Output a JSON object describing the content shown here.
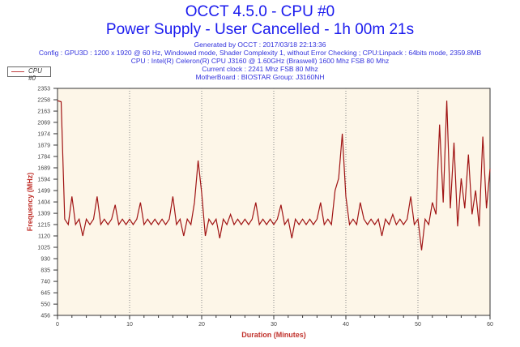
{
  "chart_data": {
    "type": "line",
    "title": "OCCT 4.5.0 - CPU #0",
    "subtitle": "Power Supply - User Cancelled - 1h 00m 21s",
    "info": [
      "Generated by OCCT : 2017/03/18 22:13:36",
      "Config : GPU3D : 1200 x 1920 @ 60 Hz, Windowed mode, Shader Complexity 1, without Error Checking ; CPU:Linpack : 64bits mode, 2359.8MB",
      "CPU : Intel(R) Celeron(R) CPU J3160 @ 1.60GHz (Braswell) 1600 Mhz FSB 80 Mhz",
      "Current clock : 2241 Mhz FSB 80 Mhz",
      "MotherBoard : BIOSTAR Group: J3160NH"
    ],
    "xlabel": "Duration (Minutes)",
    "ylabel": "Frequency (MHz)",
    "xlim": [
      0,
      60
    ],
    "ylim": [
      456,
      2353
    ],
    "xticks": [
      "0",
      "10",
      "20",
      "30",
      "40",
      "50",
      "60"
    ],
    "yticks": [
      "2353",
      "2258",
      "2163",
      "2069",
      "1974",
      "1879",
      "1784",
      "1689",
      "1594",
      "1499",
      "1404",
      "1309",
      "1215",
      "1120",
      "1025",
      "930",
      "835",
      "740",
      "645",
      "550",
      "456"
    ],
    "grid": "vertical-dotted",
    "legend": "top-left",
    "series": [
      {
        "name": "CPU #0",
        "color": "#a01414",
        "x_start": 0,
        "x_step": 0.5,
        "values": [
          2250,
          2241,
          1260,
          1215,
          1450,
          1215,
          1260,
          1120,
          1260,
          1215,
          1260,
          1450,
          1215,
          1260,
          1215,
          1260,
          1380,
          1215,
          1260,
          1215,
          1260,
          1215,
          1260,
          1400,
          1215,
          1260,
          1215,
          1260,
          1215,
          1260,
          1215,
          1260,
          1450,
          1215,
          1260,
          1120,
          1260,
          1215,
          1400,
          1750,
          1480,
          1120,
          1260,
          1215,
          1260,
          1100,
          1260,
          1215,
          1300,
          1215,
          1260,
          1215,
          1260,
          1215,
          1260,
          1400,
          1215,
          1260,
          1215,
          1260,
          1215,
          1260,
          1380,
          1215,
          1260,
          1100,
          1260,
          1215,
          1260,
          1215,
          1260,
          1215,
          1260,
          1400,
          1215,
          1260,
          1215,
          1500,
          1600,
          1974,
          1450,
          1215,
          1260,
          1215,
          1400,
          1260,
          1215,
          1260,
          1215,
          1260,
          1120,
          1260,
          1215,
          1300,
          1215,
          1260,
          1215,
          1260,
          1450,
          1215,
          1260,
          1000,
          1260,
          1215,
          1400,
          1300,
          2050,
          1400,
          2250,
          1350,
          1900,
          1200,
          1600,
          1350,
          1800,
          1300,
          1500,
          1200,
          1950,
          1350,
          1680
        ]
      }
    ]
  }
}
